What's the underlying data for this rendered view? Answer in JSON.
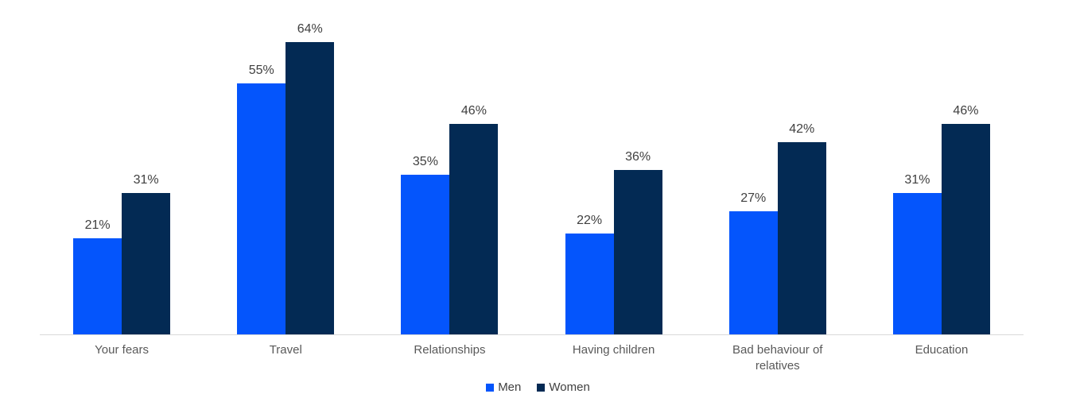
{
  "chart_data": {
    "type": "bar",
    "title": "",
    "xlabel": "",
    "ylabel": "",
    "categories": [
      "Your fears",
      "Travel",
      "Relationships",
      "Having children",
      "Bad behaviour of relatives",
      "Education"
    ],
    "series": [
      {
        "name": "Men",
        "color": "#0455FC",
        "values": [
          21,
          55,
          35,
          22,
          27,
          31
        ]
      },
      {
        "name": "Women",
        "color": "#032A54",
        "values": [
          31,
          64,
          46,
          36,
          42,
          46
        ]
      }
    ],
    "value_suffix": "%",
    "ylim": [
      0,
      73
    ],
    "y_axis_hidden": true,
    "grid": false,
    "legend_position": "bottom",
    "axis_line_color": "#D9D9D9",
    "data_label_color": "#404040",
    "category_label_color": "#595959"
  }
}
